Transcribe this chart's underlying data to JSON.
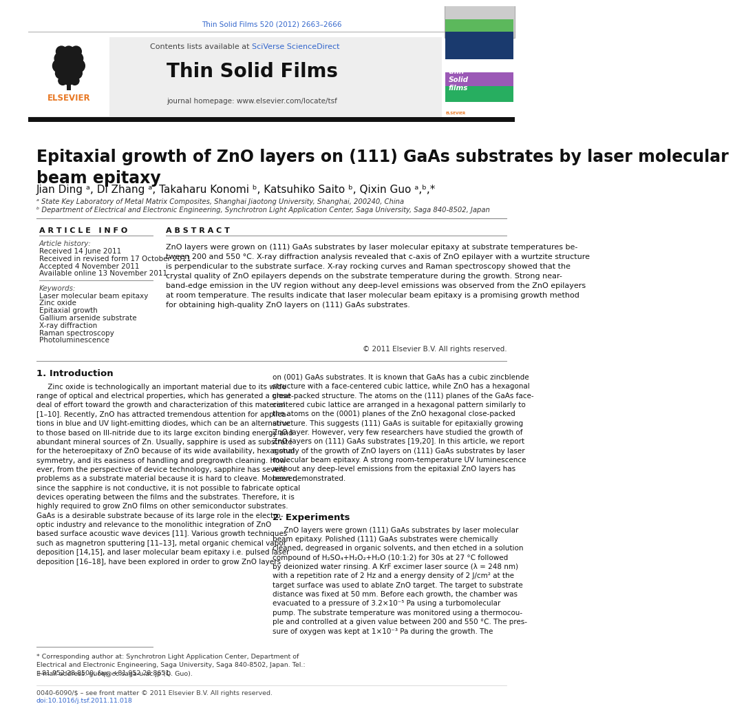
{
  "journal_ref": "Thin Solid Films 520 (2012) 2663–2666",
  "journal_ref_color": "#3366cc",
  "contents_text": "Contents lists available at ",
  "sciverse_text": "SciVerse ScienceDirect",
  "sciverse_color": "#3366cc",
  "journal_name": "Thin Solid Films",
  "homepage_text": "journal homepage: www.elsevier.com/locate/tsf",
  "title": "Epitaxial growth of ZnO layers on (111) GaAs substrates by laser molecular\nbeam epitaxy",
  "author_str": "Jian Ding ᵃ, Di Zhang ᵃ, Takaharu Konomi ᵇ, Katsuhiko Saito ᵇ, Qixin Guo ᵃ,ᵇ,*",
  "affil_a": "ᵃ State Key Laboratory of Metal Matrix Composites, Shanghai Jiaotong University, Shanghai, 200240, China",
  "affil_b": "ᵇ Department of Electrical and Electronic Engineering, Synchrotron Light Application Center, Saga University, Saga 840-8502, Japan",
  "article_info_header": "A R T I C L E   I N F O",
  "abstract_header": "A B S T R A C T",
  "article_history_label": "Article history:",
  "received": "Received 14 June 2011",
  "received_revised": "Received in revised form 17 October 2011",
  "accepted": "Accepted 4 November 2011",
  "available": "Available online 13 November 2011",
  "keywords_label": "Keywords:",
  "keywords": [
    "Laser molecular beam epitaxy",
    "Zinc oxide",
    "Epitaxial growth",
    "Gallium arsenide substrate",
    "X-ray diffraction",
    "Raman spectroscopy",
    "Photoluminescence"
  ],
  "abstract_text": "ZnO layers were grown on (111) GaAs substrates by laser molecular epitaxy at substrate temperatures be-\ntween 200 and 550 °C. X-ray diffraction analysis revealed that c-axis of ZnO epilayer with a wurtzite structure\nis perpendicular to the substrate surface. X-ray rocking curves and Raman spectroscopy showed that the\ncrystal quality of ZnO epilayers depends on the substrate temperature during the growth. Strong near-\nband-edge emission in the UV region without any deep-level emissions was observed from the ZnO epilayers\nat room temperature. The results indicate that laser molecular beam epitaxy is a promising growth method\nfor obtaining high-quality ZnO layers on (111) GaAs substrates.",
  "copyright": "© 2011 Elsevier B.V. All rights reserved.",
  "intro_header": "1. Introduction",
  "intro_text": "     Zinc oxide is technologically an important material due to its wide\nrange of optical and electrical properties, which has generated a great\ndeal of effort toward the growth and characterization of this material\n[1–10]. Recently, ZnO has attracted tremendous attention for applica-\ntions in blue and UV light-emitting diodes, which can be an alternative\nto those based on III-nitride due to its large exciton binding energy and\nabundant mineral sources of Zn. Usually, sapphire is used as substrate\nfor the heteroepitaxy of ZnO because of its wide availability, hexagonal\nsymmetry, and its easiness of handling and pregrowth cleaning. How-\never, from the perspective of device technology, sapphire has severe\nproblems as a substrate material because it is hard to cleave. Moreover,\nsince the sapphire is not conductive, it is not possible to fabricate optical\ndevices operating between the films and the substrates. Therefore, it is\nhighly required to grow ZnO films on other semiconductor substrates.\nGaAs is a desirable substrate because of its large role in the electro-\noptic industry and relevance to the monolithic integration of ZnO\nbased surface acoustic wave devices [11]. Various growth techniques\nsuch as magnetron sputtering [11–13], metal organic chemical vapor\ndeposition [14,15], and laser molecular beam epitaxy i.e. pulsed laser\ndeposition [16–18], have been explored in order to grow ZnO layers",
  "col2_intro_text": "on (001) GaAs substrates. It is known that GaAs has a cubic zincblende\nstructure with a face-centered cubic lattice, while ZnO has a hexagonal\nclose-packed structure. The atoms on the (111) planes of the GaAs face-\ncentered cubic lattice are arranged in a hexagonal pattern similarly to\nthe atoms on the (0001) planes of the ZnO hexagonal close-packed\nstructure. This suggests (111) GaAs is suitable for epitaxially growing\nZnO layer. However, very few researchers have studied the growth of\nZnO layers on (111) GaAs substrates [19,20]. In this article, we report\na study of the growth of ZnO layers on (111) GaAs substrates by laser\nmolecular beam epitaxy. A strong room-temperature UV luminescence\nwithout any deep-level emissions from the epitaxial ZnO layers has\nbeen demonstrated.",
  "exp_header": "2. Experiments",
  "exp_text": "     ZnO layers were grown (111) GaAs substrates by laser molecular\nbeam epitaxy. Polished (111) GaAs substrates were chemically\ncleaned, degreased in organic solvents, and then etched in a solution\ncompound of H₂SO₄+H₂O₂+H₂O (10:1:2) for 30s at 27 °C followed\nby deionized water rinsing. A KrF excimer laser source (λ = 248 nm)\nwith a repetition rate of 2 Hz and a energy density of 2 J/cm² at the\ntarget surface was used to ablate ZnO target. The target to substrate\ndistance was fixed at 50 mm. Before each growth, the chamber was\nevacuated to a pressure of 3.2×10⁻⁵ Pa using a turbomolecular\npump. The substrate temperature was monitored using a thermocou-\nple and controlled at a given value between 200 and 550 °C. The pres-\nsure of oxygen was kept at 1×10⁻³ Pa during the growth. The",
  "footnote_star": "* Corresponding author at: Synchrotron Light Application Center, Department of\nElectrical and Electronic Engineering, Saga University, Saga 840-8502, Japan. Tel.:\n+81 952 28 8500; fax: +81 952 28 8651.",
  "email_text": "E-mail address: guoq@cc.saga-u.ac.jp (Q. Guo).",
  "footer_text1": "0040-6090/$ – see front matter © 2011 Elsevier B.V. All rights reserved.",
  "footer_text2": "doi:10.1016/j.tsf.2011.11.018",
  "bg_color": "#ffffff"
}
